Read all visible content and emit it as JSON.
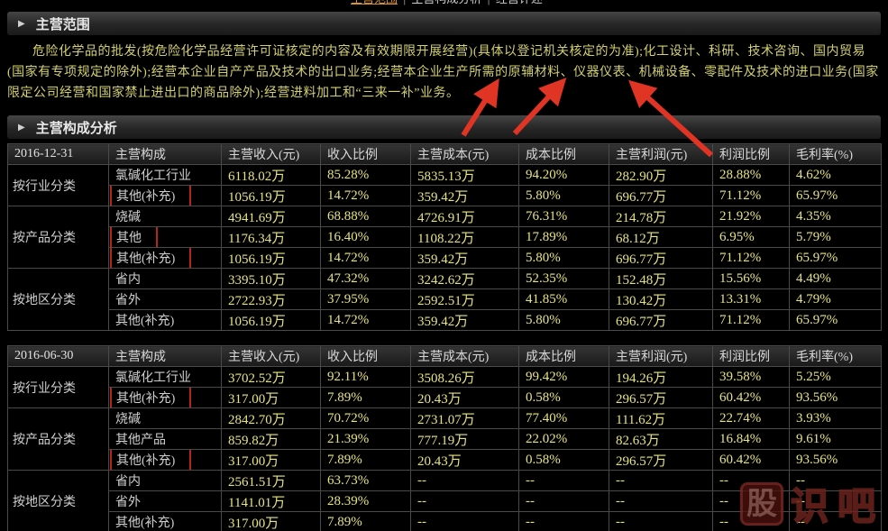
{
  "nav": {
    "separator": "|",
    "items": [
      {
        "label": "主营范围",
        "active": true
      },
      {
        "label": "主营构成分析",
        "active": false
      },
      {
        "label": "经营评述",
        "active": false
      }
    ]
  },
  "sections": {
    "scope_title": "主营范围",
    "analysis_title": "主营构成分析"
  },
  "scope_text": "危险化学品的批发(按危险化学品经营许可证核定的内容及有效期限开展经营)(具体以登记机关核定的为准);化工设计、科研、技术咨询、国内贸易(国家有专项规定的除外);经营本企业自产产品及技术的出口业务;经营本企业生产所需的原辅材料、仪器仪表、机械设备、零配件及技术的进口业务(国家限定公司经营和国家禁止进出口的商品除外);经营进料加工和“三来一补”业务。",
  "annotations": {
    "arrow_targets": [
      "原辅材料",
      "仪器仪表",
      "机械设备"
    ],
    "arrow_color": "#e03425",
    "highlight_box_color": "#b5251d"
  },
  "tables": [
    {
      "date": "2016-12-31",
      "headers": [
        "主营构成",
        "主营收入(元)",
        "收入比例",
        "主营成本(元)",
        "成本比例",
        "主营利润(元)",
        "利润比例",
        "毛利率(%)"
      ],
      "groups": [
        {
          "category": "按行业分类",
          "rows": [
            {
              "label": "氯碱化工行业",
              "boxed": false,
              "values": [
                "6118.02万",
                "85.28%",
                "5835.13万",
                "94.20%",
                "282.90万",
                "28.88%",
                "4.62%"
              ]
            },
            {
              "label": "其他(补充)",
              "boxed": true,
              "values": [
                "1056.19万",
                "14.72%",
                "359.42万",
                "5.80%",
                "696.77万",
                "71.12%",
                "65.97%"
              ]
            }
          ]
        },
        {
          "category": "按产品分类",
          "rows": [
            {
              "label": "烧碱",
              "boxed": false,
              "values": [
                "4941.69万",
                "68.88%",
                "4726.91万",
                "76.31%",
                "214.78万",
                "21.92%",
                "4.35%"
              ]
            },
            {
              "label": "其他",
              "boxed": true,
              "values": [
                "1176.34万",
                "16.40%",
                "1108.22万",
                "17.89%",
                "68.12万",
                "6.95%",
                "5.79%"
              ]
            },
            {
              "label": "其他(补充)",
              "boxed": true,
              "values": [
                "1056.19万",
                "14.72%",
                "359.42万",
                "5.80%",
                "696.77万",
                "71.12%",
                "65.97%"
              ]
            }
          ]
        },
        {
          "category": "按地区分类",
          "rows": [
            {
              "label": "省内",
              "boxed": false,
              "values": [
                "3395.10万",
                "47.32%",
                "3242.62万",
                "52.35%",
                "152.48万",
                "15.56%",
                "4.49%"
              ]
            },
            {
              "label": "省外",
              "boxed": false,
              "values": [
                "2722.93万",
                "37.95%",
                "2592.51万",
                "41.85%",
                "130.42万",
                "13.31%",
                "4.79%"
              ]
            },
            {
              "label": "其他(补充)",
              "boxed": false,
              "values": [
                "1056.19万",
                "14.72%",
                "359.42万",
                "5.80%",
                "696.77万",
                "71.12%",
                "65.97%"
              ]
            }
          ]
        }
      ]
    },
    {
      "date": "2016-06-30",
      "headers": [
        "主营构成",
        "主营收入(元)",
        "收入比例",
        "主营成本(元)",
        "成本比例",
        "主营利润(元)",
        "利润比例",
        "毛利率(%)"
      ],
      "groups": [
        {
          "category": "按行业分类",
          "rows": [
            {
              "label": "氯碱化工行业",
              "boxed": false,
              "values": [
                "3702.52万",
                "92.11%",
                "3508.26万",
                "99.42%",
                "194.26万",
                "39.58%",
                "5.25%"
              ]
            },
            {
              "label": "其他(补充)",
              "boxed": true,
              "values": [
                "317.00万",
                "7.89%",
                "20.43万",
                "0.58%",
                "296.57万",
                "60.42%",
                "93.56%"
              ]
            }
          ]
        },
        {
          "category": "按产品分类",
          "rows": [
            {
              "label": "烧碱",
              "boxed": false,
              "values": [
                "2842.70万",
                "70.72%",
                "2731.07万",
                "77.40%",
                "111.62万",
                "22.74%",
                "3.93%"
              ]
            },
            {
              "label": "其他产品",
              "boxed": false,
              "values": [
                "859.82万",
                "21.39%",
                "777.19万",
                "22.02%",
                "82.63万",
                "16.84%",
                "9.61%"
              ]
            },
            {
              "label": "其他(补充)",
              "boxed": true,
              "values": [
                "317.00万",
                "7.89%",
                "20.43万",
                "0.58%",
                "296.57万",
                "60.42%",
                "93.56%"
              ]
            }
          ]
        },
        {
          "category": "按地区分类",
          "rows": [
            {
              "label": "省内",
              "boxed": false,
              "values": [
                "2561.51万",
                "63.73%",
                "--",
                "--",
                "--",
                "--",
                "--"
              ]
            },
            {
              "label": "省外",
              "boxed": false,
              "values": [
                "1141.01万",
                "28.39%",
                "--",
                "--",
                "--",
                "--",
                "--"
              ]
            },
            {
              "label": "其他(补充)",
              "boxed": false,
              "values": [
                "317.00万",
                "7.89%",
                "--",
                "--",
                "--",
                "--",
                "--"
              ]
            }
          ]
        }
      ]
    }
  ],
  "watermark": {
    "char1": "股",
    "rest": "识吧"
  },
  "colors": {
    "background": "#000000",
    "scope_text": "#d3d06e",
    "value_text": "#e6e383",
    "label_text": "#d0d0d0",
    "nav_active": "#d99136",
    "arrow_red": "#e03425",
    "box_red": "#b5251d"
  }
}
